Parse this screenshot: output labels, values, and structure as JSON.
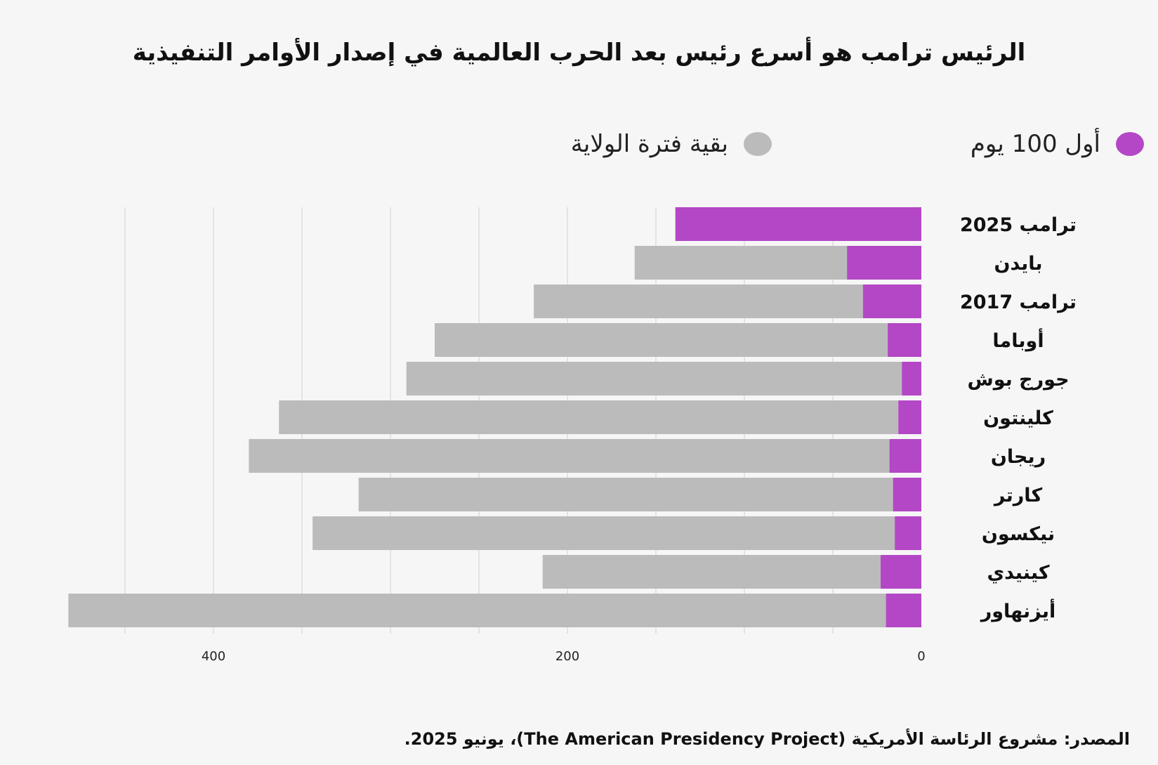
{
  "title": "الرئيس ترامب هو أسرع رئيس بعد الحرب العالمية في إصدار الأوامر التنفيذية",
  "source": "المصدر: مشروع الرئاسة الأمريكية (The American Presidency Project)، يونيو 2025.",
  "colors": {
    "first_100": "#b347c6",
    "rest": "#bbbbbb",
    "grid": "#e3e3e3"
  },
  "chart_data": {
    "type": "bar",
    "orientation": "horizontal",
    "stacked": true,
    "x_direction": "right-to-left",
    "xlim": [
      0,
      482
    ],
    "xticks": [
      400,
      200,
      0
    ],
    "grid": true,
    "legend_placement": "top",
    "categories": [
      "ترامب 2025",
      "بايدن",
      "ترامب 2017",
      "أوباما",
      "جورج بوش",
      "كلينتون",
      "ريجان",
      "كارتر",
      "نيكسون",
      "كينيدي",
      "أيزنهاور"
    ],
    "series": [
      {
        "name": "أول 100 يوم",
        "color": "#b347c6",
        "values": [
          139,
          42,
          33,
          19,
          11,
          13,
          18,
          16,
          15,
          23,
          20
        ]
      },
      {
        "name": "بقية فترة الولاية",
        "color": "#bbbbbb",
        "values": [
          0,
          120,
          186,
          256,
          280,
          350,
          362,
          302,
          329,
          191,
          462
        ]
      }
    ]
  }
}
